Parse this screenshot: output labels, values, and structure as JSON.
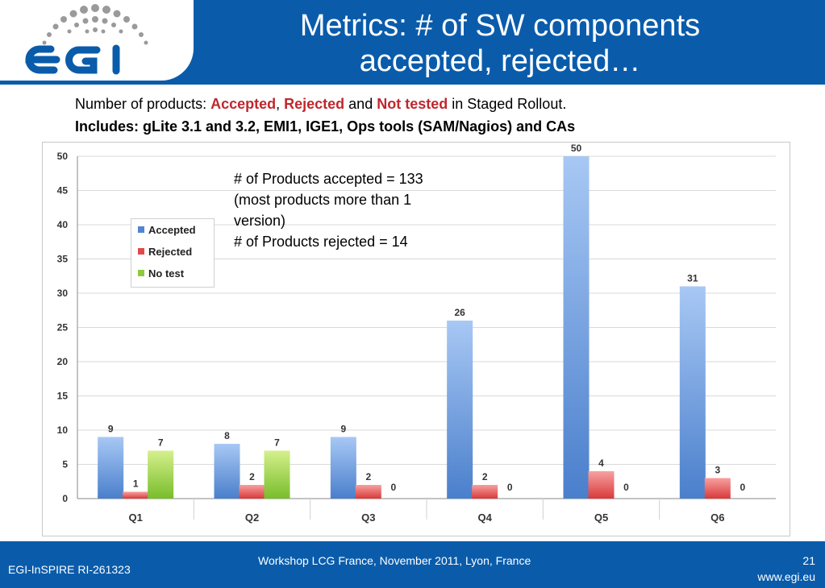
{
  "header": {
    "title_line1": "Metrics: # of SW components",
    "title_line2": "accepted, rejected…",
    "logo_text": "egi",
    "colors": {
      "bar": "#0a5cab"
    }
  },
  "subtitle": {
    "prefix": "Number of products: ",
    "accepted": "Accepted",
    "sep1": ", ",
    "rejected": "Rejected",
    "and": " and ",
    "not_tested": "Not tested",
    "suffix": " in Staged Rollout.",
    "line2": "Includes: gLite 3.1 and 3.2, EMI1, IGE1, Ops tools (SAM/Nagios) and CAs"
  },
  "annotation": {
    "line1": "# of Products accepted = 133",
    "line2": "(most products more than 1",
    "line3": "version)",
    "line4": "# of Products rejected = 14"
  },
  "chart_data": {
    "type": "bar",
    "categories": [
      "Q1",
      "Q2",
      "Q3",
      "Q4",
      "Q5",
      "Q6"
    ],
    "series": [
      {
        "name": "Accepted",
        "values": [
          9,
          8,
          9,
          26,
          50,
          31
        ],
        "color": "#4f86d1"
      },
      {
        "name": "Rejected",
        "values": [
          1,
          2,
          2,
          2,
          4,
          3
        ],
        "color": "#e04a4a"
      },
      {
        "name": "No test",
        "values": [
          7,
          7,
          0,
          0,
          0,
          0
        ],
        "color": "#8ccc3c"
      }
    ],
    "ylim": [
      0,
      50
    ],
    "yticks": [
      0,
      5,
      10,
      15,
      20,
      25,
      30,
      35,
      40,
      45,
      50
    ],
    "grid": true,
    "legend_position": "upper-left"
  },
  "footer": {
    "left": "EGI-InSPIRE RI-261323",
    "center": "Workshop LCG France, November 2011, Lyon, France",
    "page": "21",
    "url": "www.egi.eu"
  }
}
